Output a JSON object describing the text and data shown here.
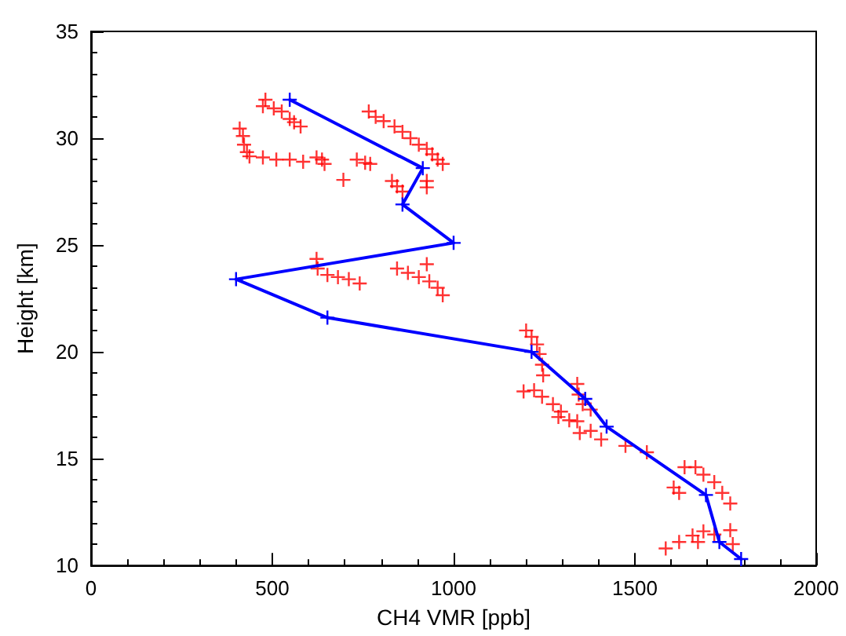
{
  "chart_data": {
    "type": "scatter",
    "xlabel": "CH4 VMR [ppb]",
    "ylabel": "Height [km]",
    "xlim": [
      0,
      2000
    ],
    "ylim": [
      10,
      35
    ],
    "xticks": [
      0,
      500,
      1000,
      1500,
      2000
    ],
    "yticks": [
      10,
      15,
      20,
      25,
      30,
      35
    ],
    "grid": false,
    "marker": "cross",
    "series": [
      {
        "color": "#ff0000",
        "x": [
          481,
          474,
          504,
          526,
          548,
          560,
          578,
          766,
          785,
          807,
          837,
          859,
          881,
          904,
          926,
          941,
          956,
          970,
          410,
          419,
          422,
          430,
          437,
          474,
          511,
          548,
          585,
          622,
          637,
          644,
          733,
          756,
          770,
          696,
          830,
          844,
          859,
          926,
          926,
          622,
          625,
          652,
          681,
          711,
          741,
          844,
          874,
          904,
          933,
          956,
          970,
          926,
          1200,
          1215,
          1230,
          1237,
          1244,
          1247,
          1193,
          1222,
          1244,
          1274,
          1296,
          1289,
          1319,
          1341,
          1348,
          1378,
          1407,
          1474,
          1533,
          1341,
          1345,
          1356,
          1378,
          1637,
          1667,
          1689,
          1719,
          1741,
          1763,
          1607,
          1622,
          1585,
          1622,
          1659,
          1689,
          1719,
          1763,
          1770,
          1674
        ],
        "values": [
          31.8,
          31.5,
          31.4,
          31.25,
          30.9,
          30.75,
          30.55,
          31.25,
          31.0,
          30.8,
          30.55,
          30.3,
          30.0,
          29.7,
          29.5,
          29.25,
          29.0,
          28.8,
          30.45,
          30.1,
          29.7,
          29.35,
          29.15,
          29.1,
          29.0,
          29.0,
          28.9,
          29.1,
          29.0,
          28.8,
          29.0,
          28.85,
          28.8,
          28.05,
          28.0,
          27.75,
          27.5,
          28.0,
          27.7,
          24.35,
          23.9,
          23.6,
          23.5,
          23.4,
          23.2,
          23.9,
          23.7,
          23.5,
          23.3,
          23.0,
          22.65,
          24.1,
          21.0,
          20.7,
          20.35,
          19.9,
          19.4,
          18.9,
          18.15,
          18.2,
          17.9,
          17.55,
          17.2,
          16.95,
          16.8,
          16.75,
          16.2,
          16.3,
          15.9,
          15.6,
          15.3,
          18.5,
          18.0,
          17.55,
          17.3,
          14.6,
          14.6,
          14.25,
          13.9,
          13.4,
          12.9,
          13.65,
          13.4,
          10.8,
          11.1,
          11.4,
          11.6,
          11.45,
          11.65,
          11.0,
          11.1
        ]
      },
      {
        "type": "line",
        "color": "#0000ff",
        "line_style": "solid",
        "x": [
          548,
          915,
          859,
          1000,
          400,
          652,
          1215,
          1363,
          1422,
          1696,
          1733,
          1793
        ],
        "values": [
          31.8,
          28.6,
          26.9,
          25.1,
          23.4,
          21.6,
          20.0,
          17.8,
          16.5,
          13.3,
          11.1,
          10.3
        ]
      }
    ]
  }
}
